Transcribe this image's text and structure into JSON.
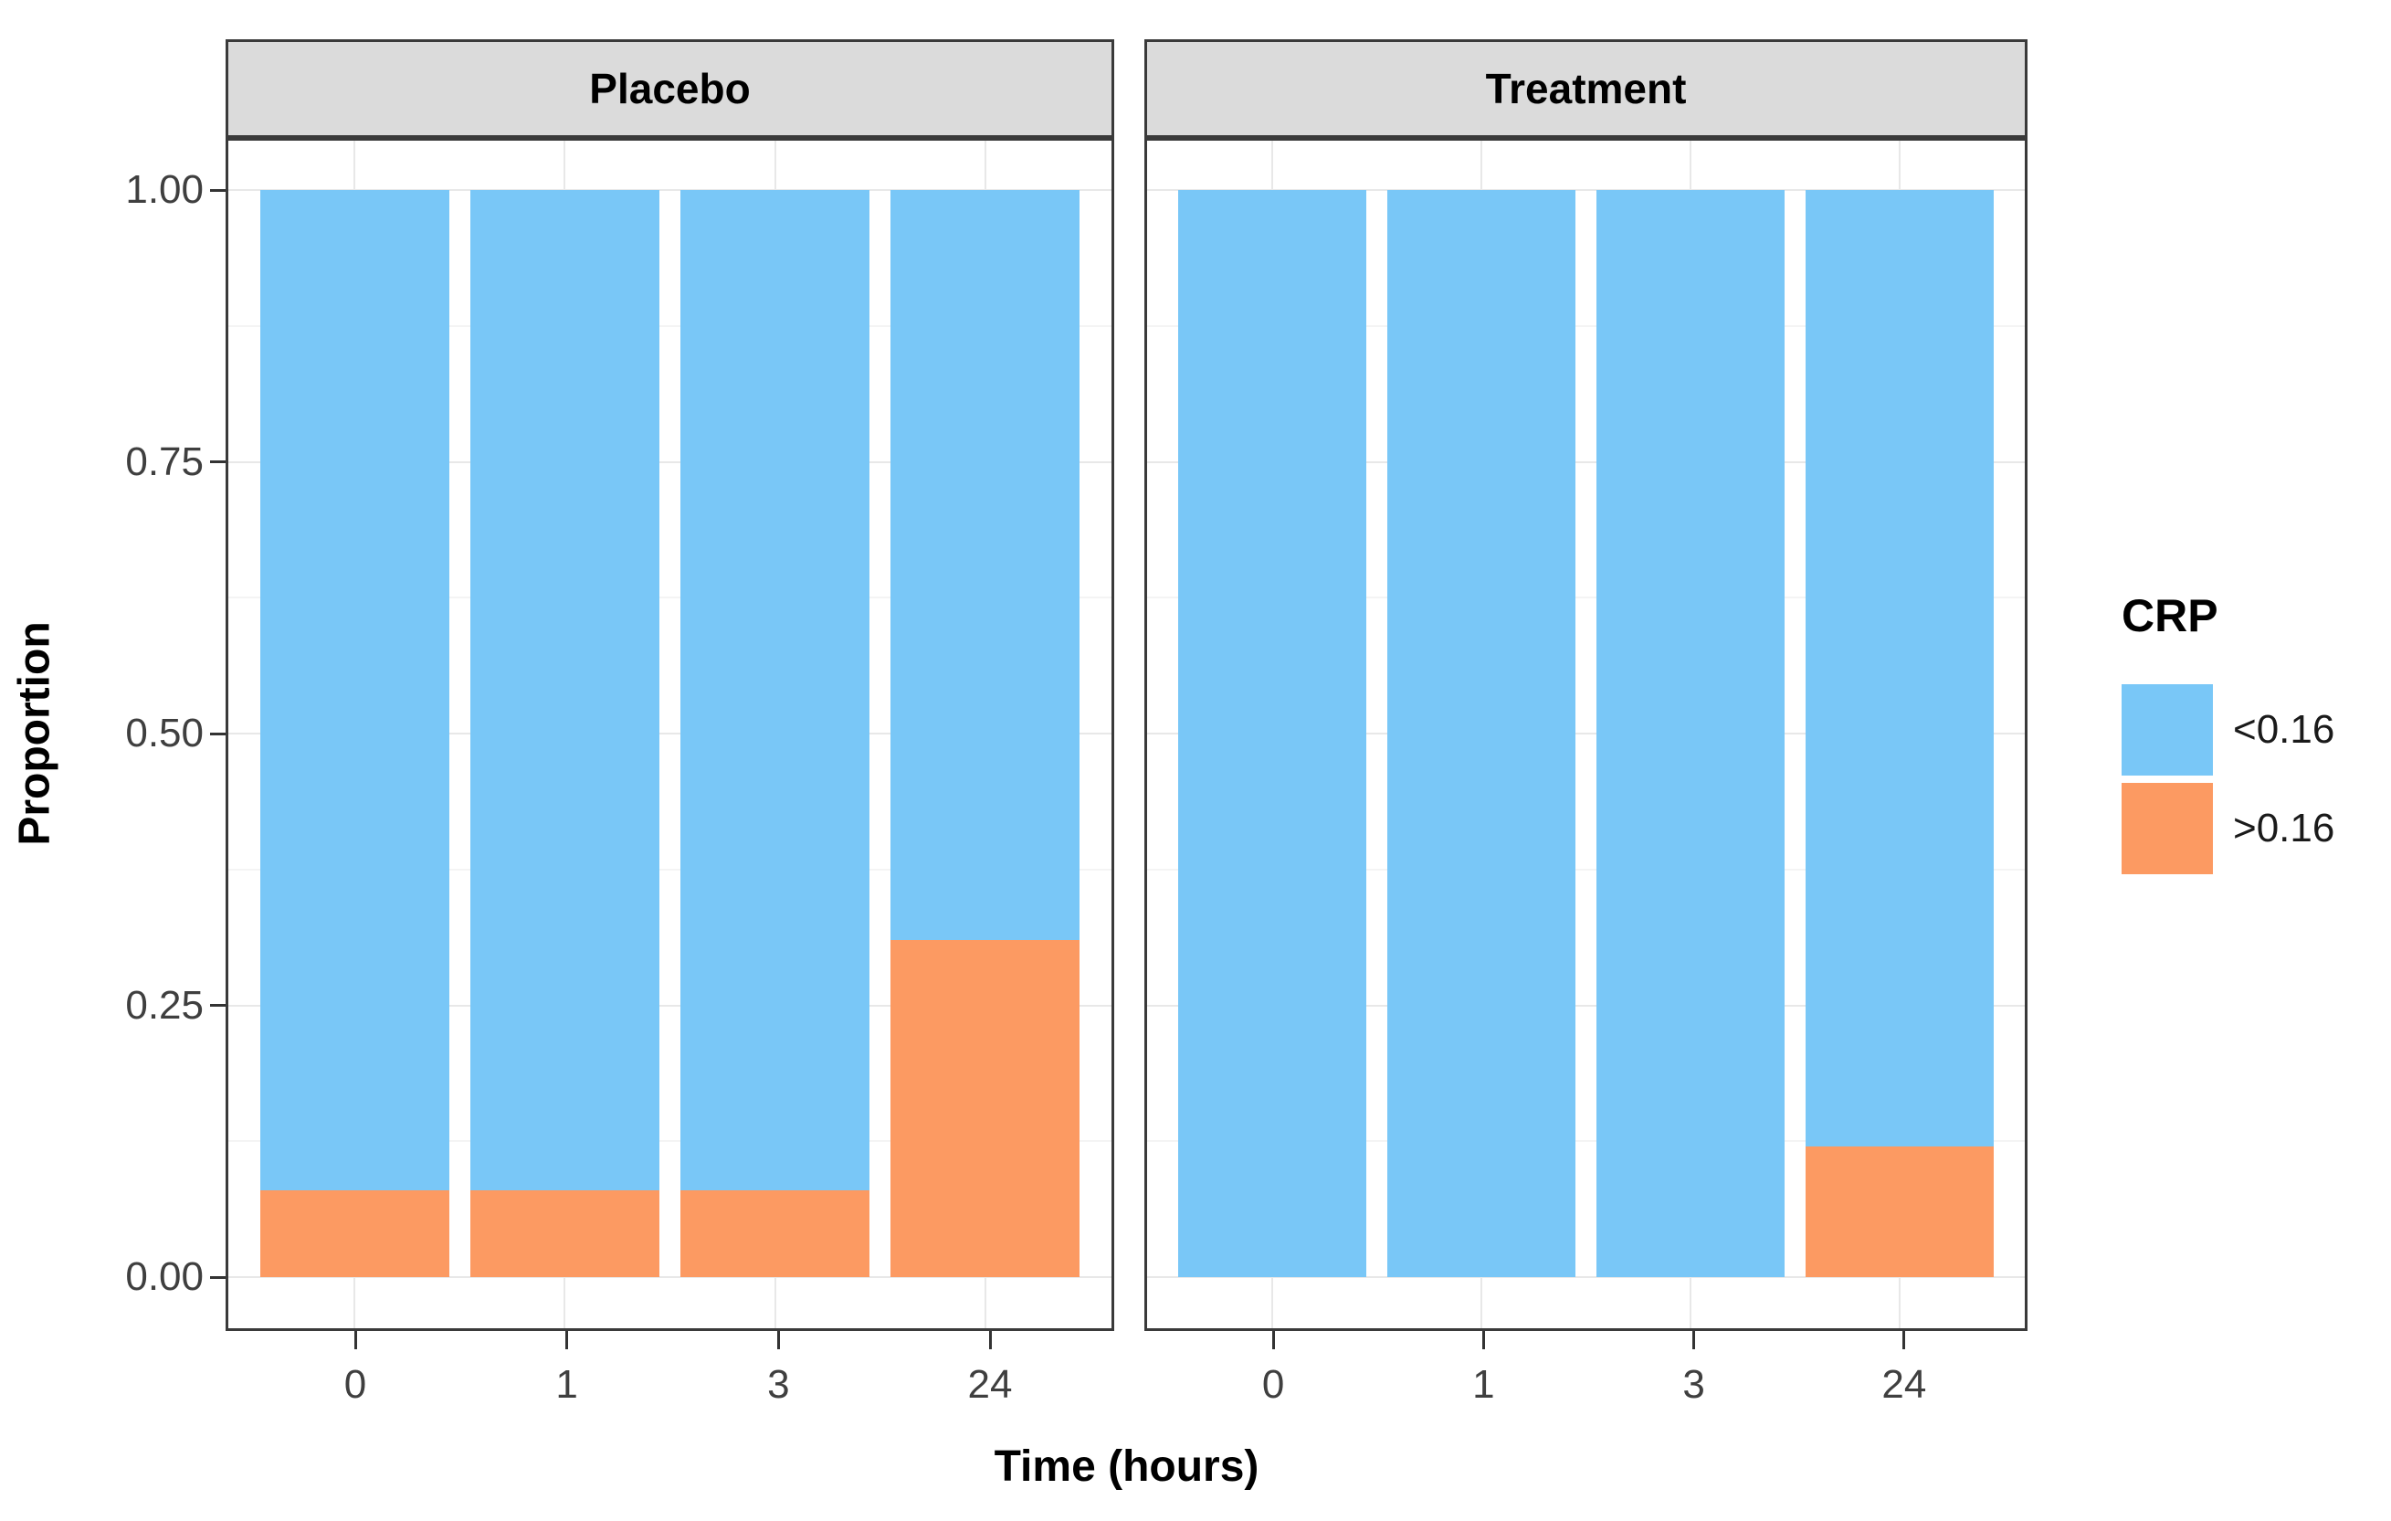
{
  "chart_data": {
    "type": "bar",
    "stacked": true,
    "orientation": "vertical",
    "xlabel": "Time (hours)",
    "ylabel": "Proportion",
    "ylim": [
      0,
      1
    ],
    "grid": true,
    "yticks": [
      {
        "label": "1.00",
        "value": 1.0
      },
      {
        "label": "0.75",
        "value": 0.75
      },
      {
        "label": "0.50",
        "value": 0.5
      },
      {
        "label": "0.25",
        "value": 0.25
      },
      {
        "label": "0.00",
        "value": 0.0
      }
    ],
    "yminor": [
      0.125,
      0.375,
      0.625,
      0.875
    ],
    "colors": {
      "<0.16": "#79C7F7",
      ">0.16": "#FC9A62"
    },
    "facets": [
      {
        "label": "Placebo",
        "categories": [
          "0",
          "1",
          "3",
          "24"
        ],
        "stacks": [
          {
            "name": "<0.16",
            "values": [
              0.92,
              0.92,
              0.92,
              0.69
            ]
          },
          {
            "name": ">0.16",
            "values": [
              0.08,
              0.08,
              0.08,
              0.31
            ]
          }
        ]
      },
      {
        "label": "Treatment",
        "categories": [
          "0",
          "1",
          "3",
          "24"
        ],
        "stacks": [
          {
            "name": "<0.16",
            "values": [
              1.0,
              1.0,
              1.0,
              0.88
            ]
          },
          {
            "name": ">0.16",
            "values": [
              0.0,
              0.0,
              0.0,
              0.12
            ]
          }
        ]
      }
    ],
    "legend": {
      "title": "CRP",
      "position": "right",
      "entries": [
        {
          "label": "<0.16",
          "color": "#79C7F7"
        },
        {
          "label": ">0.16",
          "color": "#FC9A62"
        }
      ]
    }
  }
}
